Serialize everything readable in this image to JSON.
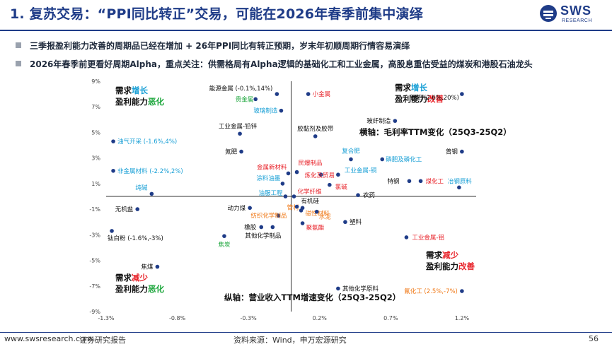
{
  "header": {
    "title": "1. 复苏交易：“PPI同比转正”交易，可能在2026年春季前集中演绎",
    "logo_text": "SWS",
    "logo_sub": "RESEARCH"
  },
  "bullets": [
    "三季报盈利能力改善的周期品已经在增加 + 26年PPI同比有转正预期，岁末年初顺周期行情容易演绎",
    "2026年春季前更看好周期Alpha，重点关注：供需格局有Alpha逻辑的基础化工和工业金属，高股息重估受益的煤炭和港股石油龙头"
  ],
  "colors": {
    "point": "#1f3c88",
    "black": "#111111",
    "red": "#e8232a",
    "green": "#1aa53a",
    "blue": "#1aa0d6",
    "orange": "#f07a19",
    "axis": "#333333"
  },
  "chart_data": {
    "type": "scatter",
    "x_axis_title": "横轴：毛利率TTM变化（25Q3-25Q2）",
    "y_axis_title": "纵轴：营业收入TTM增速变化（25Q3-25Q2）",
    "xlim": [
      -1.3,
      1.3
    ],
    "ylim": [
      -9,
      9
    ],
    "x_ticks": [
      -1.3,
      -0.8,
      -0.3,
      0.2,
      0.7,
      1.2
    ],
    "x_tick_labels": [
      "-1.3%",
      "-0.8%",
      "-0.3%",
      "0.2%",
      "0.7%",
      "1.2%"
    ],
    "y_ticks": [
      9,
      7,
      5,
      3,
      1,
      -1,
      -3,
      -5,
      -7,
      -9
    ],
    "y_tick_labels": [
      "9%",
      "7%",
      "5%",
      "3%",
      "1%",
      "-1%",
      "-3%",
      "-5%",
      "-7%",
      "-9%"
    ],
    "quadrants": [
      {
        "pos": "top-left",
        "line1_a": "需求",
        "line1_b": "增长",
        "line1_b_color": "blue",
        "line2_a": "盈利能力",
        "line2_b": "恶化",
        "line2_b_color": "green"
      },
      {
        "pos": "top-right",
        "line1_a": "需求",
        "line1_b": "增长",
        "line1_b_color": "blue",
        "line2_a": "盈利能力",
        "line2_b": "改善",
        "line2_b_color": "red"
      },
      {
        "pos": "bottom-left",
        "line1_a": "需求",
        "line1_b": "减少",
        "line1_b_color": "red",
        "line2_a": "盈利能力",
        "line2_b": "恶化",
        "line2_b_color": "green"
      },
      {
        "pos": "bottom-right",
        "line1_a": "需求",
        "line1_b": "减少",
        "line1_b_color": "red",
        "line2_a": "盈利能力",
        "line2_b": "改善",
        "line2_b_color": "red"
      }
    ],
    "points": [
      {
        "label": "能源金属 (-0.1%,14%)",
        "x": -0.1,
        "y": 8.0,
        "color": "black",
        "anchor": "end",
        "dx": -6,
        "dy": -5
      },
      {
        "label": "贵金属",
        "x": -0.25,
        "y": 7.6,
        "color": "green",
        "anchor": "end",
        "dx": -3,
        "dy": 3
      },
      {
        "label": "小金属",
        "x": 0.12,
        "y": 8.0,
        "color": "red",
        "anchor": "start",
        "dx": 6,
        "dy": 3
      },
      {
        "label": "钾肥 (2.6%,20%)",
        "x": 1.2,
        "y": 8.0,
        "color": "black",
        "anchor": "end",
        "dx": -4,
        "dy": 8
      },
      {
        "label": "玻璃制造",
        "x": -0.07,
        "y": 6.7,
        "color": "blue",
        "anchor": "end",
        "dx": -5,
        "dy": 3
      },
      {
        "label": "玻纤制造",
        "x": 0.73,
        "y": 5.9,
        "color": "black",
        "anchor": "end",
        "dx": -6,
        "dy": 3
      },
      {
        "label": "工业金属-铅锌",
        "x": -0.36,
        "y": 4.9,
        "color": "black",
        "anchor": "middle",
        "dx": -3,
        "dy": -8
      },
      {
        "label": "胶黏剂及胶带",
        "x": 0.17,
        "y": 4.7,
        "color": "black",
        "anchor": "middle",
        "dx": 0,
        "dy": -8
      },
      {
        "label": "油气开采 (-1.6%,4%)",
        "x": -1.25,
        "y": 4.3,
        "color": "blue",
        "anchor": "start",
        "dx": 6,
        "dy": 3
      },
      {
        "label": "氮肥",
        "x": -0.35,
        "y": 3.5,
        "color": "black",
        "anchor": "end",
        "dx": -6,
        "dy": 3
      },
      {
        "label": "复合肥",
        "x": 0.42,
        "y": 2.9,
        "color": "blue",
        "anchor": "middle",
        "dx": 0,
        "dy": -9
      },
      {
        "label": "磷肥及磷化工",
        "x": 0.64,
        "y": 2.9,
        "color": "blue",
        "anchor": "start",
        "dx": 5,
        "dy": 3
      },
      {
        "label": "普钢",
        "x": 1.2,
        "y": 3.5,
        "color": "black",
        "anchor": "end",
        "dx": -6,
        "dy": 3
      },
      {
        "label": "金属新材料",
        "x": -0.02,
        "y": 1.8,
        "color": "red",
        "anchor": "end",
        "dx": -2,
        "dy": -6
      },
      {
        "label": "民爆制品",
        "x": 0.04,
        "y": 1.9,
        "color": "red",
        "anchor": "start",
        "dx": 2,
        "dy": -10
      },
      {
        "label": "非金属材料 (-2.2%,2%)",
        "x": -1.25,
        "y": 2.0,
        "color": "blue",
        "anchor": "start",
        "dx": 6,
        "dy": 3
      },
      {
        "label": "炼化及贸易",
        "x": 0.21,
        "y": 1.7,
        "color": "red",
        "anchor": "middle",
        "dx": -2,
        "dy": 4
      },
      {
        "label": "工业金属-铜",
        "x": 0.33,
        "y": 1.7,
        "color": "blue",
        "anchor": "start",
        "dx": 9,
        "dy": -3
      },
      {
        "label": "涂料油墨",
        "x": -0.06,
        "y": 1.0,
        "color": "blue",
        "anchor": "end",
        "dx": -3,
        "dy": -5
      },
      {
        "label": "氯碱",
        "x": 0.27,
        "y": 0.9,
        "color": "red",
        "anchor": "start",
        "dx": 8,
        "dy": 6
      },
      {
        "label": "特钢",
        "x": 0.83,
        "y": 1.2,
        "color": "black",
        "anchor": "end",
        "dx": -14,
        "dy": 3
      },
      {
        "label": "煤化工",
        "x": 0.91,
        "y": 1.2,
        "color": "red",
        "anchor": "start",
        "dx": 7,
        "dy": 3
      },
      {
        "label": "冶钢原料",
        "x": 1.18,
        "y": 0.7,
        "color": "blue",
        "anchor": "start",
        "dx": -16,
        "dy": -6
      },
      {
        "label": "纯碱",
        "x": -0.98,
        "y": 0.2,
        "color": "blue",
        "anchor": "end",
        "dx": -6,
        "dy": -6
      },
      {
        "label": "油服工程",
        "x": -0.04,
        "y": 0.0,
        "color": "blue",
        "anchor": "end",
        "dx": -4,
        "dy": -2
      },
      {
        "label": "化学纤维",
        "x": 0.02,
        "y": 0.0,
        "color": "red",
        "anchor": "start",
        "dx": 5,
        "dy": -4
      },
      {
        "label": "农药",
        "x": 0.47,
        "y": 0.1,
        "color": "black",
        "anchor": "start",
        "dx": 7,
        "dy": 3
      },
      {
        "label": "无机盐",
        "x": -1.08,
        "y": -1.0,
        "color": "black",
        "anchor": "end",
        "dx": -6,
        "dy": 3
      },
      {
        "label": "动力煤",
        "x": -0.29,
        "y": -0.9,
        "color": "black",
        "anchor": "end",
        "dx": -6,
        "dy": 3
      },
      {
        "label": "管材",
        "x": 0.08,
        "y": -0.9,
        "color": "orange",
        "anchor": "end",
        "dx": -5,
        "dy": 2
      },
      {
        "label": "有机硅",
        "x": 0.04,
        "y": -0.8,
        "color": "black",
        "anchor": "start",
        "dx": 6,
        "dy": -5
      },
      {
        "label": "磁性材料",
        "x": 0.07,
        "y": -1.1,
        "color": "orange",
        "anchor": "start",
        "dx": 6,
        "dy": 7
      },
      {
        "label": "纺织化学制品",
        "x": -0.09,
        "y": -1.5,
        "color": "orange",
        "anchor": "end",
        "dx": 12,
        "dy": 3
      },
      {
        "label": "水泥",
        "x": 0.18,
        "y": -1.2,
        "color": "orange",
        "anchor": "start",
        "dx": 3,
        "dy": 10
      },
      {
        "label": "塑料",
        "x": 0.38,
        "y": -2.0,
        "color": "black",
        "anchor": "start",
        "dx": 6,
        "dy": 3
      },
      {
        "label": "聚氨酯",
        "x": 0.08,
        "y": -2.1,
        "color": "red",
        "anchor": "start",
        "dx": 5,
        "dy": 9
      },
      {
        "label": "钛白粉 (-1.6%,-3%)",
        "x": -1.26,
        "y": -2.7,
        "color": "black",
        "anchor": "start",
        "dx": -6,
        "dy": 13
      },
      {
        "label": "橡胶",
        "x": -0.21,
        "y": -2.4,
        "color": "black",
        "anchor": "end",
        "dx": -7,
        "dy": 3
      },
      {
        "label": "其他化学制品",
        "x": -0.13,
        "y": -2.4,
        "color": "black",
        "anchor": "end",
        "dx": 12,
        "dy": 15
      },
      {
        "label": "焦炭",
        "x": -0.47,
        "y": -3.1,
        "color": "green",
        "anchor": "middle",
        "dx": 0,
        "dy": 15
      },
      {
        "label": "工业金属-铝",
        "x": 0.81,
        "y": -3.2,
        "color": "red",
        "anchor": "start",
        "dx": 8,
        "dy": 3
      },
      {
        "label": "焦煤",
        "x": -0.94,
        "y": -5.5,
        "color": "black",
        "anchor": "end",
        "dx": -6,
        "dy": 3
      },
      {
        "label": "其他化学原料",
        "x": 0.33,
        "y": -7.2,
        "color": "black",
        "anchor": "start",
        "dx": 6,
        "dy": 3
      },
      {
        "label": "氟化工 (2.5%,-7%)",
        "x": 1.2,
        "y": -7.4,
        "color": "orange",
        "anchor": "end",
        "dx": -6,
        "dy": 3
      }
    ]
  },
  "footer": {
    "site": "www.swsresearch.com",
    "brand": "证券研究报告",
    "source": "资料来源：Wind，申万宏源研究",
    "page": "56"
  }
}
